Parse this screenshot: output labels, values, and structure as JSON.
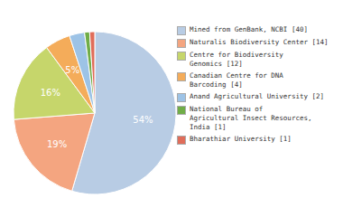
{
  "chart_data": {
    "type": "pie",
    "categories": [
      "Mined from GenBank, NCBI [40]",
      "Naturalis Biodiversity Center [14]",
      "Centre for Biodiversity\nGenomics [12]",
      "Canadian Centre for DNA\nBarcoding [4]",
      "Anand Agricultural University [2]",
      "National Bureau of\nAgricultural Insect Resources,\nIndia [1]",
      "Bharathiar University [1]"
    ],
    "values": [
      54,
      19,
      16,
      5,
      3,
      1,
      1
    ],
    "value_labels": [
      "54%",
      "19%",
      "16%",
      "5%",
      null,
      null,
      null
    ],
    "data_labels": true,
    "colors": [
      "#b8cce4",
      "#f4a580",
      "#c6d66b",
      "#f4ac5a",
      "#9dc3e6",
      "#70ad47",
      "#e06d5a"
    ],
    "legend": "right"
  }
}
